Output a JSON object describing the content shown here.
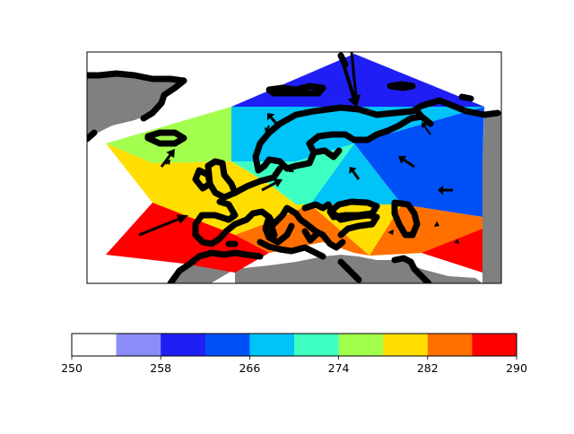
{
  "chart_data": {
    "type": "filled-contour-map",
    "title": "",
    "region": "Europe",
    "colorbar": {
      "orientation": "horizontal",
      "vmin": 250,
      "vmax": 290,
      "levels": [
        250,
        254,
        258,
        262,
        266,
        270,
        274,
        278,
        282,
        286,
        290
      ],
      "colors": [
        "#ffffff",
        "#8c8cf8",
        "#1f1ff5",
        "#0050f8",
        "#00c3f8",
        "#3dffc2",
        "#a3ff4d",
        "#ffde00",
        "#ff7000",
        "#ff0000"
      ],
      "tick_labels": [
        "250",
        "258",
        "266",
        "274",
        "282",
        "290"
      ]
    },
    "filled_regions": [
      {
        "level_range": [
          258,
          262
        ],
        "color": "#1f1ff5"
      },
      {
        "level_range": [
          262,
          266
        ],
        "color": "#0050f8"
      },
      {
        "level_range": [
          266,
          270
        ],
        "color": "#00c3f8"
      },
      {
        "level_range": [
          270,
          274
        ],
        "color": "#3dffc2"
      },
      {
        "level_range": [
          274,
          278
        ],
        "color": "#a3ff4d"
      },
      {
        "level_range": [
          278,
          282
        ],
        "color": "#ffde00"
      },
      {
        "level_range": [
          282,
          286
        ],
        "color": "#ff7000"
      },
      {
        "level_range": [
          286,
          290
        ],
        "color": "#ff0000"
      }
    ],
    "land_color": "#808080",
    "coastline_color": "#000000",
    "vectors": "wind arrows overlaid (quiver)"
  }
}
